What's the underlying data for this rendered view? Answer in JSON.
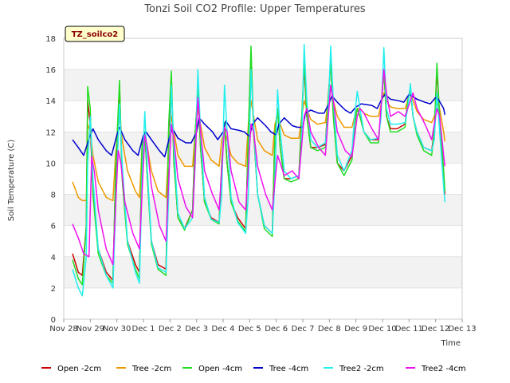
{
  "chart_data": {
    "type": "line",
    "title": "Tonzi Soil CO2 Profile: Upper Temperatures",
    "badge": "TZ_soilco2",
    "xlabel": "Time",
    "ylabel": "Soil Temperature (C)",
    "xlim": [
      0,
      15
    ],
    "ylim": [
      0,
      18
    ],
    "x_ticks": [
      {
        "v": 0,
        "label": "Nov 28"
      },
      {
        "v": 1,
        "label": "Nov 29"
      },
      {
        "v": 2,
        "label": "Nov 30"
      },
      {
        "v": 3,
        "label": "Dec 1"
      },
      {
        "v": 4,
        "label": "Dec 2"
      },
      {
        "v": 5,
        "label": "Dec 3"
      },
      {
        "v": 6,
        "label": "Dec 4"
      },
      {
        "v": 7,
        "label": "Dec 5"
      },
      {
        "v": 8,
        "label": "Dec 6"
      },
      {
        "v": 9,
        "label": "Dec 7"
      },
      {
        "v": 10,
        "label": "Dec 8"
      },
      {
        "v": 11,
        "label": "Dec 9"
      },
      {
        "v": 12,
        "label": "Dec 10"
      },
      {
        "v": 13,
        "label": "Dec 11"
      },
      {
        "v": 14,
        "label": "Dec 12"
      },
      {
        "v": 15,
        "label": "Dec 13"
      }
    ],
    "y_ticks": [
      0,
      2,
      4,
      6,
      8,
      10,
      12,
      14,
      16,
      18
    ],
    "grid": true,
    "legend_position": "bottom",
    "series": [
      {
        "name": "Open -2cm",
        "color": "#cc0000",
        "x": [
          0.33,
          0.55,
          0.7,
          0.85,
          0.9,
          1.0,
          1.1,
          1.3,
          1.6,
          1.85,
          1.95,
          2.1,
          2.2,
          2.4,
          2.7,
          2.85,
          2.95,
          3.05,
          3.15,
          3.3,
          3.55,
          3.85,
          3.95,
          4.05,
          4.15,
          4.3,
          4.55,
          4.85,
          4.95,
          5.05,
          5.15,
          5.3,
          5.55,
          5.85,
          5.95,
          6.05,
          6.15,
          6.3,
          6.55,
          6.85,
          6.95,
          7.05,
          7.15,
          7.3,
          7.55,
          7.85,
          7.95,
          8.05,
          8.15,
          8.3,
          8.55,
          8.85,
          8.95,
          9.05,
          9.15,
          9.3,
          9.55,
          9.85,
          9.95,
          10.05,
          10.15,
          10.3,
          10.55,
          10.85,
          10.95,
          11.05,
          11.15,
          11.3,
          11.55,
          11.85,
          11.95,
          12.05,
          12.15,
          12.3,
          12.55,
          12.85,
          12.95,
          13.05,
          13.15,
          13.3,
          13.55,
          13.85,
          13.95,
          14.05,
          14.15,
          14.3,
          14.35
        ],
        "y": [
          4.2,
          3.0,
          2.8,
          6.0,
          14.0,
          12.5,
          8.0,
          4.5,
          3.0,
          2.5,
          9.0,
          15.0,
          9.0,
          5.0,
          3.5,
          3.0,
          11.0,
          12.0,
          9.0,
          5.0,
          3.5,
          3.2,
          12.0,
          15.5,
          10.0,
          6.5,
          5.8,
          7.0,
          12.0,
          14.5,
          11.0,
          7.5,
          6.5,
          6.2,
          10.0,
          12.5,
          10.0,
          7.5,
          6.5,
          5.8,
          12.0,
          17.0,
          12.0,
          8.0,
          6.0,
          5.5,
          12.0,
          13.5,
          11.0,
          9.0,
          9.0,
          9.2,
          12.5,
          16.2,
          13.0,
          11.0,
          11.0,
          11.2,
          14.0,
          16.5,
          13.0,
          10.0,
          9.5,
          10.5,
          12.5,
          13.5,
          13.0,
          12.0,
          11.5,
          11.5,
          13.5,
          16.0,
          13.0,
          12.2,
          12.2,
          12.5,
          14.0,
          14.8,
          13.0,
          12.0,
          11.0,
          10.8,
          12.0,
          16.0,
          13.0,
          9.5,
          8.0
        ]
      },
      {
        "name": "Tree -2cm",
        "color": "#ee9900",
        "x": [
          0.33,
          0.55,
          0.7,
          0.85,
          0.9,
          1.0,
          1.1,
          1.3,
          1.6,
          1.85,
          1.95,
          2.1,
          2.2,
          2.4,
          2.7,
          2.85,
          2.95,
          3.05,
          3.15,
          3.3,
          3.55,
          3.85,
          3.95,
          4.05,
          4.15,
          4.3,
          4.55,
          4.85,
          4.95,
          5.05,
          5.15,
          5.3,
          5.55,
          5.85,
          5.95,
          6.05,
          6.15,
          6.3,
          6.55,
          6.85,
          6.95,
          7.05,
          7.15,
          7.3,
          7.55,
          7.85,
          7.95,
          8.05,
          8.15,
          8.3,
          8.55,
          8.85,
          8.95,
          9.05,
          9.15,
          9.3,
          9.55,
          9.85,
          9.95,
          10.05,
          10.15,
          10.3,
          10.55,
          10.85,
          10.95,
          11.05,
          11.15,
          11.3,
          11.55,
          11.85,
          11.95,
          12.05,
          12.15,
          12.3,
          12.55,
          12.85,
          12.95,
          13.05,
          13.15,
          13.3,
          13.55,
          13.85,
          13.95,
          14.05,
          14.15,
          14.3,
          14.35
        ],
        "y": [
          8.8,
          7.8,
          7.6,
          7.6,
          12.5,
          12.0,
          10.5,
          8.8,
          7.8,
          7.6,
          10.5,
          13.0,
          11.5,
          9.5,
          8.2,
          7.8,
          11.0,
          11.5,
          11.0,
          9.5,
          8.2,
          7.8,
          11.0,
          13.0,
          12.0,
          10.5,
          9.8,
          9.8,
          12.0,
          13.5,
          12.5,
          11.0,
          10.2,
          9.8,
          11.5,
          12.0,
          11.5,
          10.5,
          10.0,
          9.8,
          12.5,
          14.0,
          13.0,
          11.5,
          10.8,
          10.5,
          12.5,
          13.0,
          12.5,
          11.8,
          11.6,
          11.6,
          12.8,
          14.0,
          13.5,
          12.8,
          12.5,
          12.6,
          14.0,
          15.0,
          14.0,
          13.0,
          12.3,
          12.3,
          13.0,
          13.5,
          13.5,
          13.2,
          13.0,
          13.0,
          13.8,
          14.5,
          14.0,
          13.6,
          13.5,
          13.5,
          14.0,
          14.5,
          14.0,
          13.3,
          12.8,
          12.6,
          13.0,
          13.8,
          13.5,
          12.0,
          11.4
        ]
      },
      {
        "name": "Open -4cm",
        "color": "#22dd22",
        "x": [
          0.33,
          0.55,
          0.7,
          0.85,
          0.9,
          1.0,
          1.1,
          1.3,
          1.6,
          1.85,
          1.95,
          2.1,
          2.2,
          2.4,
          2.7,
          2.85,
          2.95,
          3.05,
          3.15,
          3.3,
          3.55,
          3.85,
          3.95,
          4.05,
          4.15,
          4.3,
          4.55,
          4.85,
          4.95,
          5.05,
          5.15,
          5.3,
          5.55,
          5.85,
          5.95,
          6.05,
          6.15,
          6.3,
          6.55,
          6.85,
          6.95,
          7.05,
          7.15,
          7.3,
          7.55,
          7.85,
          7.95,
          8.05,
          8.15,
          8.3,
          8.55,
          8.85,
          8.95,
          9.05,
          9.15,
          9.3,
          9.55,
          9.85,
          9.95,
          10.05,
          10.15,
          10.3,
          10.55,
          10.85,
          10.95,
          11.05,
          11.15,
          11.3,
          11.55,
          11.85,
          11.95,
          12.05,
          12.15,
          12.3,
          12.55,
          12.85,
          12.95,
          13.05,
          13.15,
          13.3,
          13.55,
          13.85,
          13.95,
          14.05,
          14.15,
          14.3,
          14.35
        ],
        "y": [
          3.8,
          2.6,
          2.2,
          6.0,
          14.9,
          13.5,
          8.0,
          4.2,
          2.8,
          2.3,
          9.5,
          15.3,
          9.0,
          4.8,
          3.2,
          2.6,
          11.5,
          12.0,
          9.0,
          4.8,
          3.2,
          2.8,
          12.5,
          15.9,
          10.0,
          6.5,
          5.7,
          7.0,
          12.0,
          14.7,
          11.0,
          7.5,
          6.4,
          6.1,
          10.0,
          12.6,
          10.0,
          7.5,
          6.3,
          5.6,
          12.0,
          17.5,
          12.0,
          8.0,
          5.8,
          5.3,
          12.0,
          13.5,
          11.0,
          9.0,
          8.8,
          9.0,
          12.5,
          16.6,
          13.0,
          11.0,
          10.8,
          11.0,
          14.0,
          16.5,
          13.0,
          10.0,
          9.2,
          10.2,
          12.5,
          13.5,
          13.0,
          12.0,
          11.3,
          11.3,
          13.5,
          16.0,
          13.0,
          12.0,
          12.0,
          12.3,
          14.0,
          14.8,
          13.0,
          11.8,
          10.8,
          10.5,
          12.0,
          16.4,
          13.0,
          9.5,
          8.2
        ]
      },
      {
        "name": "Tree -4cm",
        "color": "#0000cc",
        "x": [
          0.33,
          0.55,
          0.75,
          1.0,
          1.1,
          1.3,
          1.6,
          1.8,
          2.0,
          2.1,
          2.3,
          2.6,
          2.8,
          3.0,
          3.1,
          3.3,
          3.6,
          3.8,
          4.0,
          4.1,
          4.3,
          4.6,
          4.8,
          5.0,
          5.1,
          5.3,
          5.6,
          5.8,
          6.0,
          6.1,
          6.3,
          6.6,
          6.8,
          7.0,
          7.1,
          7.3,
          7.6,
          7.8,
          8.0,
          8.1,
          8.3,
          8.6,
          8.8,
          9.0,
          9.1,
          9.3,
          9.6,
          9.8,
          10.0,
          10.1,
          10.3,
          10.6,
          10.8,
          11.0,
          11.2,
          11.6,
          11.8,
          12.0,
          12.1,
          12.3,
          12.6,
          12.8,
          13.0,
          13.1,
          13.3,
          13.6,
          13.8,
          14.0,
          14.1,
          14.3,
          14.35
        ],
        "y": [
          11.5,
          11.0,
          10.5,
          11.8,
          12.2,
          11.5,
          10.8,
          10.5,
          11.8,
          12.3,
          11.5,
          10.8,
          10.5,
          11.8,
          12.0,
          11.5,
          10.8,
          10.4,
          11.8,
          12.2,
          11.6,
          11.3,
          11.3,
          12.0,
          12.9,
          12.5,
          12.0,
          11.5,
          12.0,
          12.7,
          12.2,
          12.1,
          12.0,
          11.7,
          12.5,
          12.9,
          12.4,
          12.0,
          11.8,
          12.5,
          12.9,
          12.4,
          12.3,
          12.3,
          13.2,
          13.4,
          13.2,
          13.2,
          13.9,
          14.3,
          13.9,
          13.4,
          13.2,
          13.6,
          13.8,
          13.7,
          13.5,
          14.2,
          14.4,
          14.1,
          14.0,
          13.9,
          14.4,
          14.3,
          14.1,
          13.9,
          13.8,
          14.2,
          14.1,
          13.5,
          13.1
        ]
      },
      {
        "name": "Tree2 -2cm",
        "color": "#22eeee",
        "x": [
          0.33,
          0.55,
          0.7,
          0.85,
          0.9,
          1.0,
          1.1,
          1.3,
          1.6,
          1.85,
          1.95,
          2.1,
          2.2,
          2.4,
          2.7,
          2.85,
          2.95,
          3.05,
          3.15,
          3.3,
          3.55,
          3.85,
          3.95,
          4.05,
          4.15,
          4.3,
          4.55,
          4.85,
          4.95,
          5.05,
          5.15,
          5.3,
          5.55,
          5.85,
          5.95,
          6.05,
          6.15,
          6.3,
          6.55,
          6.85,
          6.95,
          7.05,
          7.15,
          7.3,
          7.55,
          7.85,
          7.95,
          8.05,
          8.15,
          8.3,
          8.55,
          8.85,
          8.95,
          9.05,
          9.15,
          9.3,
          9.55,
          9.85,
          9.95,
          10.05,
          10.15,
          10.3,
          10.55,
          10.85,
          10.95,
          11.05,
          11.15,
          11.3,
          11.55,
          11.85,
          11.95,
          12.05,
          12.15,
          12.3,
          12.55,
          12.85,
          12.95,
          13.05,
          13.15,
          13.3,
          13.55,
          13.85,
          13.95,
          14.05,
          14.15,
          14.3,
          14.35
        ],
        "y": [
          3.2,
          2.0,
          1.5,
          4.0,
          10.0,
          13.0,
          9.0,
          4.5,
          2.8,
          2.0,
          7.0,
          13.8,
          10.0,
          5.0,
          3.0,
          2.3,
          9.0,
          13.3,
          9.5,
          5.0,
          3.3,
          3.0,
          8.0,
          15.0,
          11.0,
          6.8,
          5.8,
          6.5,
          10.0,
          16.0,
          12.0,
          7.8,
          6.4,
          6.2,
          8.0,
          15.0,
          12.0,
          7.8,
          6.2,
          5.5,
          8.0,
          16.0,
          12.5,
          8.0,
          6.0,
          5.5,
          9.0,
          14.7,
          12.0,
          9.5,
          9.0,
          9.2,
          11.0,
          17.6,
          14.0,
          11.5,
          11.0,
          11.3,
          13.0,
          17.5,
          14.0,
          10.5,
          9.5,
          10.8,
          13.0,
          14.6,
          13.5,
          12.0,
          11.5,
          11.6,
          13.0,
          17.4,
          13.5,
          12.5,
          12.5,
          12.6,
          13.5,
          15.1,
          13.0,
          12.0,
          11.0,
          10.8,
          11.5,
          14.5,
          12.0,
          8.5,
          7.5
        ]
      },
      {
        "name": "Tree2 -4cm",
        "color": "#ee11ee",
        "x": [
          0.33,
          0.55,
          0.75,
          0.95,
          1.05,
          1.15,
          1.3,
          1.6,
          1.85,
          2.05,
          2.15,
          2.3,
          2.6,
          2.85,
          3.05,
          3.15,
          3.3,
          3.6,
          3.85,
          4.05,
          4.15,
          4.3,
          4.6,
          4.85,
          5.05,
          5.15,
          5.3,
          5.6,
          5.85,
          6.05,
          6.15,
          6.3,
          6.6,
          6.85,
          7.05,
          7.15,
          7.3,
          7.6,
          7.85,
          8.05,
          8.15,
          8.3,
          8.6,
          8.85,
          9.05,
          9.15,
          9.3,
          9.6,
          9.85,
          10.05,
          10.15,
          10.3,
          10.6,
          10.85,
          11.05,
          11.15,
          11.3,
          11.6,
          11.85,
          12.05,
          12.15,
          12.3,
          12.6,
          12.85,
          13.05,
          13.15,
          13.3,
          13.6,
          13.85,
          14.05,
          14.15,
          14.3,
          14.35
        ],
        "y": [
          6.1,
          5.2,
          4.2,
          4.0,
          10.4,
          9.5,
          7.0,
          4.5,
          3.5,
          10.8,
          10.0,
          7.5,
          5.5,
          4.5,
          11.8,
          11.0,
          8.5,
          6.0,
          5.0,
          12.5,
          11.5,
          9.0,
          7.2,
          6.5,
          14.2,
          12.0,
          9.5,
          8.0,
          7.0,
          12.3,
          12.0,
          9.5,
          7.5,
          7.0,
          12.5,
          12.0,
          9.8,
          8.0,
          7.0,
          10.5,
          10.0,
          9.2,
          9.5,
          9.0,
          13.0,
          13.5,
          12.0,
          11.0,
          10.5,
          15.0,
          14.0,
          12.0,
          10.8,
          10.4,
          13.0,
          13.5,
          13.2,
          12.2,
          11.5,
          16.0,
          14.5,
          13.0,
          13.3,
          13.0,
          14.0,
          14.5,
          13.5,
          12.5,
          11.5,
          13.5,
          13.0,
          10.5,
          9.8
        ]
      }
    ]
  }
}
